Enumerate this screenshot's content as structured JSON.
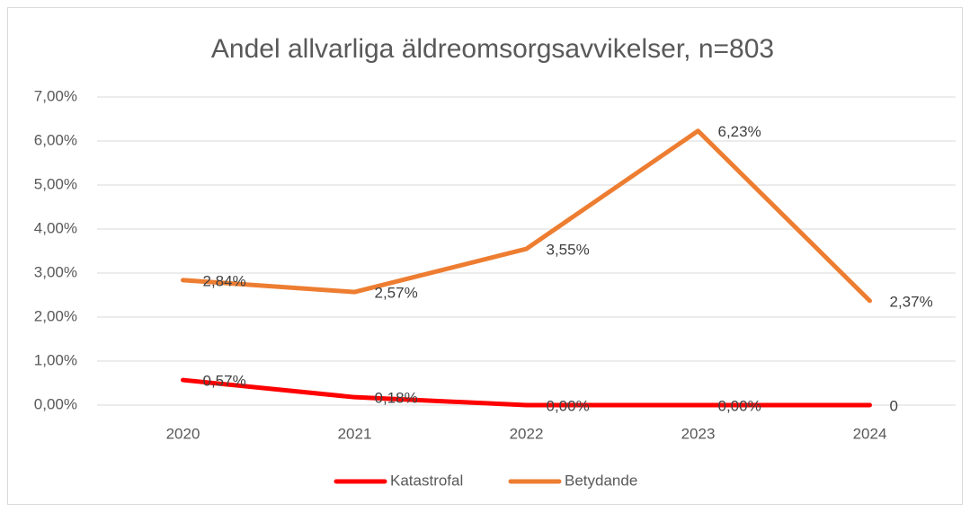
{
  "chart_data": {
    "type": "line",
    "title": "Andel allvarliga äldreomsorgsavvikelser, n=803",
    "categories": [
      "2020",
      "2021",
      "2022",
      "2023",
      "2024"
    ],
    "series": [
      {
        "name": "Katastrofal",
        "color": "#ff0000",
        "values": [
          0.57,
          0.18,
          0,
          0,
          0
        ],
        "value_labels": [
          "0,57%",
          "0,18%",
          "0,00%",
          "0,00%",
          "0"
        ]
      },
      {
        "name": "Betydande",
        "color": "#ed7d31",
        "values": [
          2.84,
          2.57,
          3.55,
          6.23,
          2.37
        ],
        "value_labels": [
          "2,84%",
          "2,57%",
          "3,55%",
          "6,23%",
          "2,37%"
        ]
      }
    ],
    "ylim": [
      0,
      7
    ],
    "yticks": [
      {
        "value": 0,
        "label": "0,00%"
      },
      {
        "value": 1,
        "label": "1,00%"
      },
      {
        "value": 2,
        "label": "2,00%"
      },
      {
        "value": 3,
        "label": "3,00%"
      },
      {
        "value": 4,
        "label": "4,00%"
      },
      {
        "value": 5,
        "label": "5,00%"
      },
      {
        "value": 6,
        "label": "6,00%"
      },
      {
        "value": 7,
        "label": "7,00%"
      }
    ],
    "grid": true,
    "legend": "bottom"
  }
}
